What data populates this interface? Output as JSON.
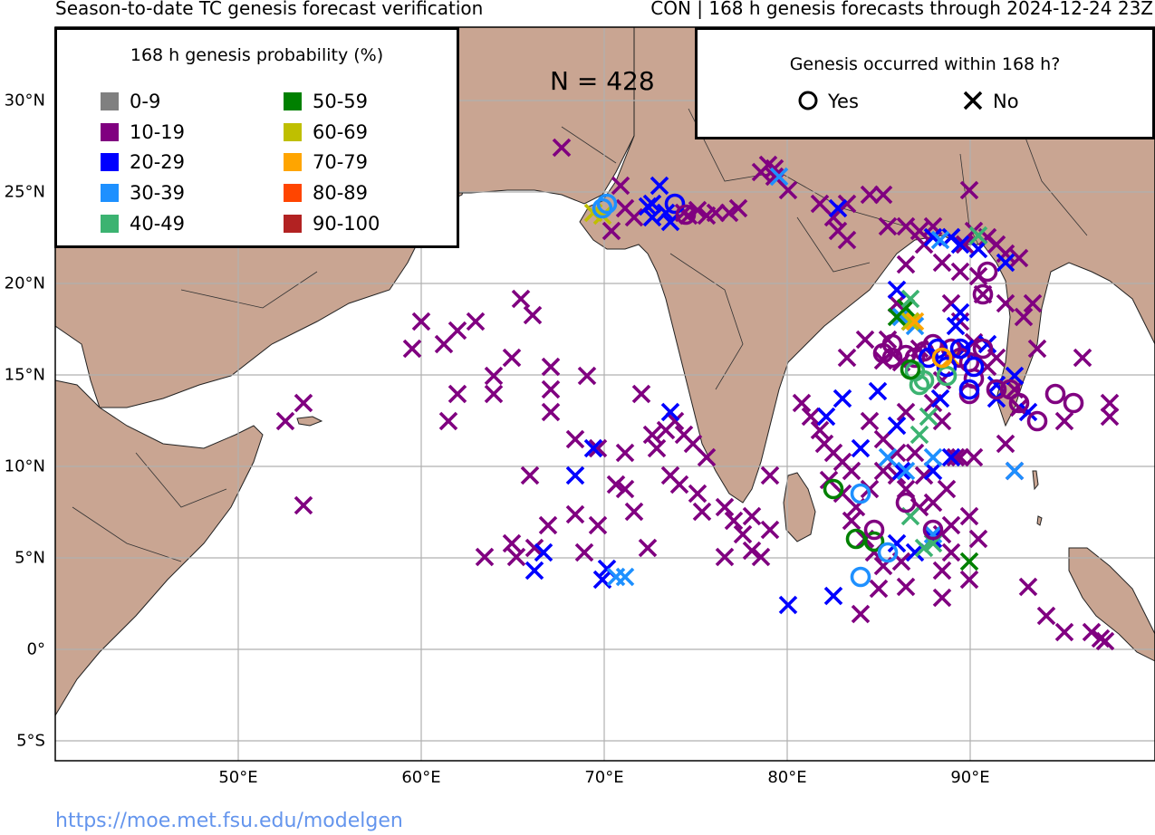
{
  "title_left": "Season-to-date TC genesis forecast verification",
  "title_right": "CON | 168 h genesis forecasts through 2024-12-24 23Z",
  "sample_count": "N = 428",
  "url": "https://moe.met.fsu.edu/modelgen",
  "lat_ticks": [
    "30°N",
    "25°N",
    "20°N",
    "15°N",
    "10°N",
    "5°N",
    "0°",
    "5°S"
  ],
  "lon_ticks": [
    "50°E",
    "60°E",
    "70°E",
    "80°E",
    "90°E"
  ],
  "probability_legend": {
    "title": "168 h genesis probability (%)",
    "bins": [
      {
        "label": "0-9",
        "color": "#808080"
      },
      {
        "label": "10-19",
        "color": "#800080"
      },
      {
        "label": "20-29",
        "color": "#0000FF"
      },
      {
        "label": "30-39",
        "color": "#1E90FF"
      },
      {
        "label": "40-49",
        "color": "#3CB371"
      },
      {
        "label": "50-59",
        "color": "#008000"
      },
      {
        "label": "60-69",
        "color": "#BFBF00"
      },
      {
        "label": "70-79",
        "color": "#FFA500"
      },
      {
        "label": "80-89",
        "color": "#FF4500"
      },
      {
        "label": "90-100",
        "color": "#B22222"
      }
    ]
  },
  "genesis_legend": {
    "title": "Genesis occurred within 168 h?",
    "yes_label": "Yes",
    "no_label": "No",
    "yes_marker": "ring-marker",
    "no_marker": "x-marker"
  },
  "map_colors": {
    "land": "#C9A592",
    "ocean": "#FFFFFF",
    "grid": "#B0B0B0",
    "border": "#333333"
  }
}
